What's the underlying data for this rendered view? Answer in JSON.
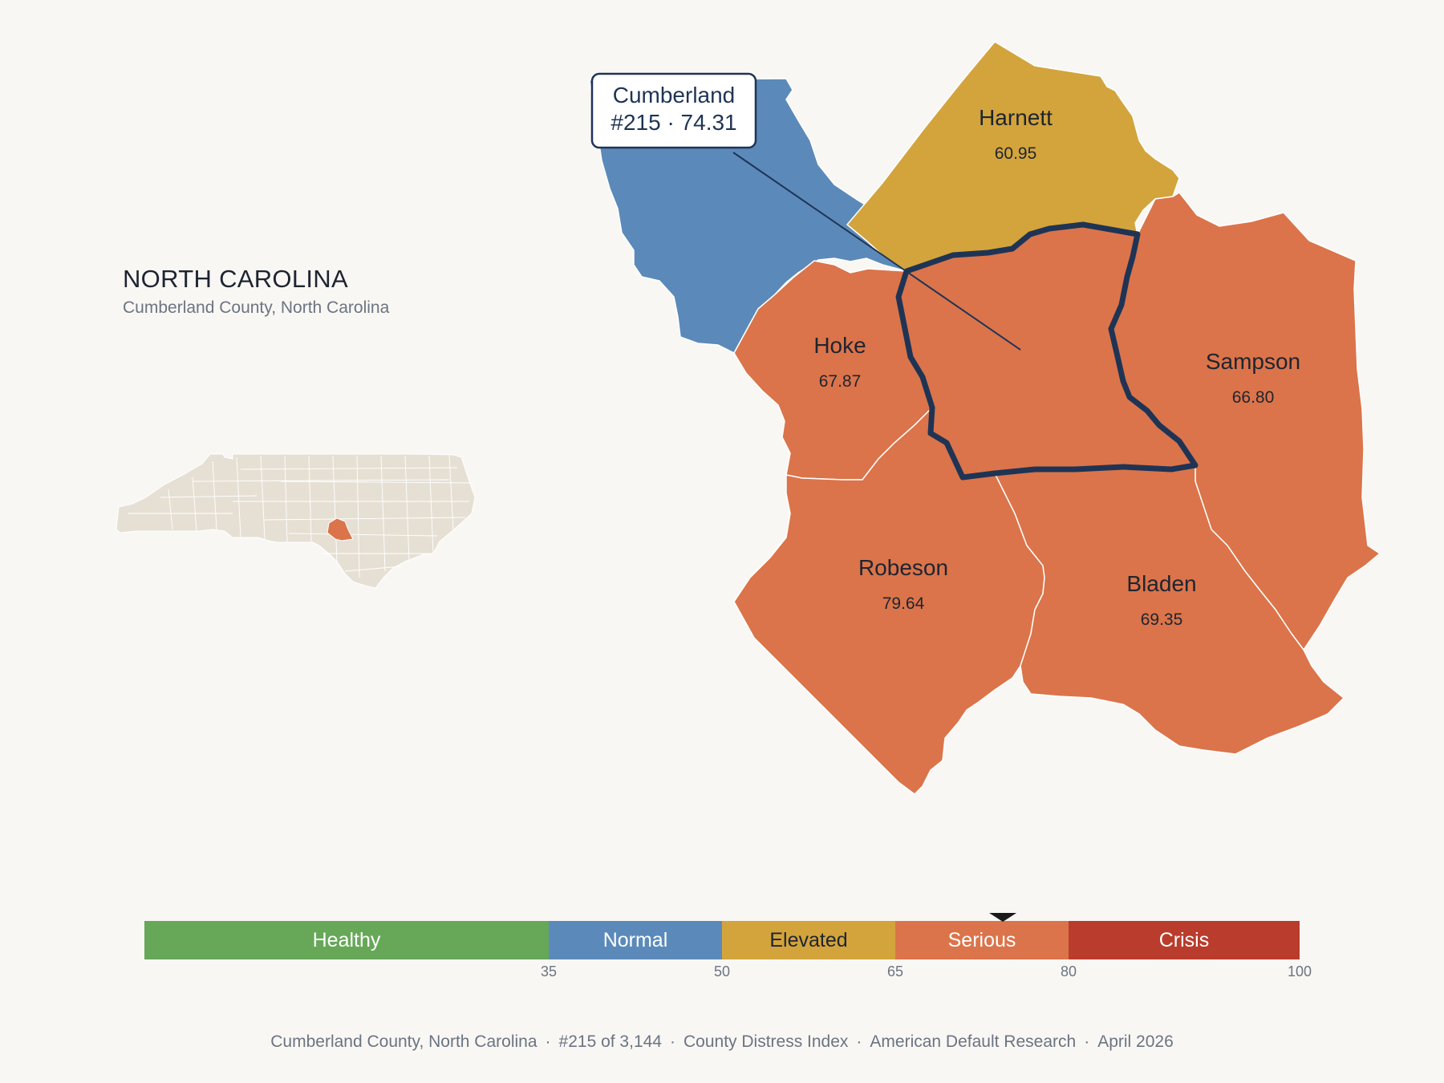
{
  "header": {
    "state": "NORTH CAROLINA",
    "subtitle": "Cumberland County, North Carolina"
  },
  "colors": {
    "background": "#f9f7f4",
    "healthy": "#66a858",
    "normal": "#5b8aba",
    "elevated": "#d3a43c",
    "serious": "#db744a",
    "crisis": "#b93c2c",
    "outline": "#1f3455",
    "inset_county": "#e6e0d4"
  },
  "counties": [
    {
      "name": "Harnett",
      "value": "60.95",
      "category": "elevated"
    },
    {
      "name": "Hoke",
      "value": "67.87",
      "category": "serious"
    },
    {
      "name": "Sampson",
      "value": "66.80",
      "category": "serious"
    },
    {
      "name": "Robeson",
      "value": "79.64",
      "category": "serious"
    },
    {
      "name": "Bladen",
      "value": "69.35",
      "category": "serious"
    },
    {
      "name": "Cumberland",
      "value": "74.31",
      "category": "serious"
    }
  ],
  "callout": {
    "name": "Cumberland",
    "detail": "#215 · 74.31"
  },
  "legend": {
    "segments": [
      "Healthy",
      "Normal",
      "Elevated",
      "Serious",
      "Crisis"
    ],
    "ticks": [
      "35",
      "50",
      "65",
      "80",
      "100"
    ],
    "marker_value": 74.31
  },
  "footer": {
    "county": "Cumberland County, North Carolina",
    "rank": "#215 of 3,144",
    "index": "County Distress Index",
    "source": "American Default Research",
    "date": "April 2026"
  }
}
